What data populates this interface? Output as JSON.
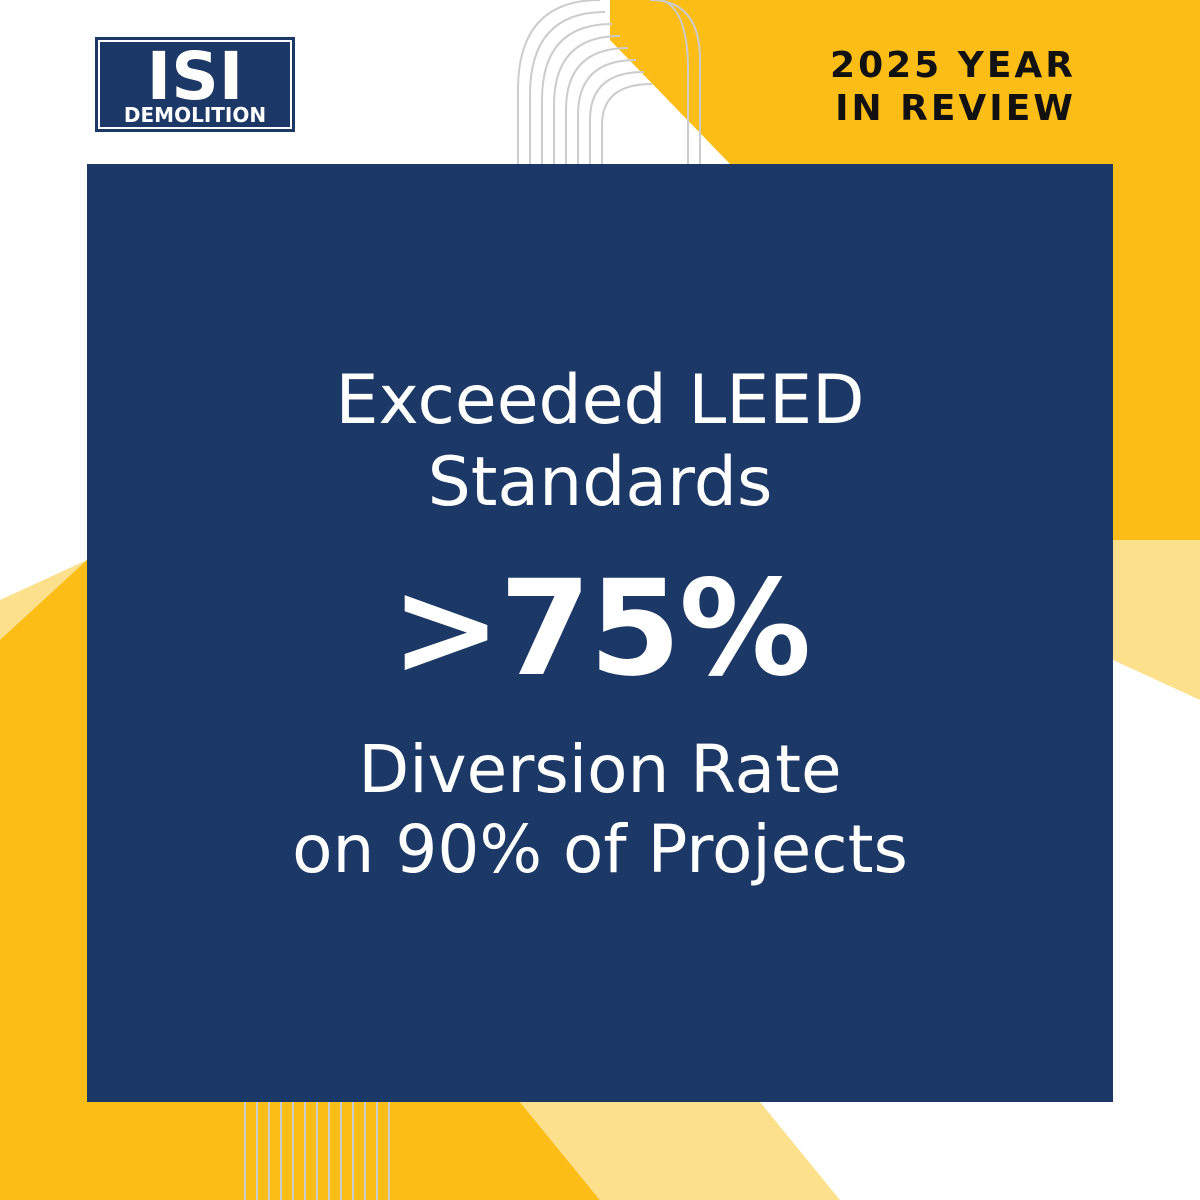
{
  "brand": {
    "logo_top": "ISI",
    "logo_bottom": "DEMOLITION",
    "navy": "#1c3866",
    "yellow": "#fdbd17",
    "light_yellow": "#fde08b"
  },
  "header": {
    "line1": "2025 YEAR",
    "line2": "IN REVIEW"
  },
  "panel": {
    "headline_line1": "Exceeded LEED",
    "headline_line2": "Standards",
    "stat": ">75%",
    "sub_line1": "Diversion Rate",
    "sub_line2": "on 90% of Projects"
  }
}
